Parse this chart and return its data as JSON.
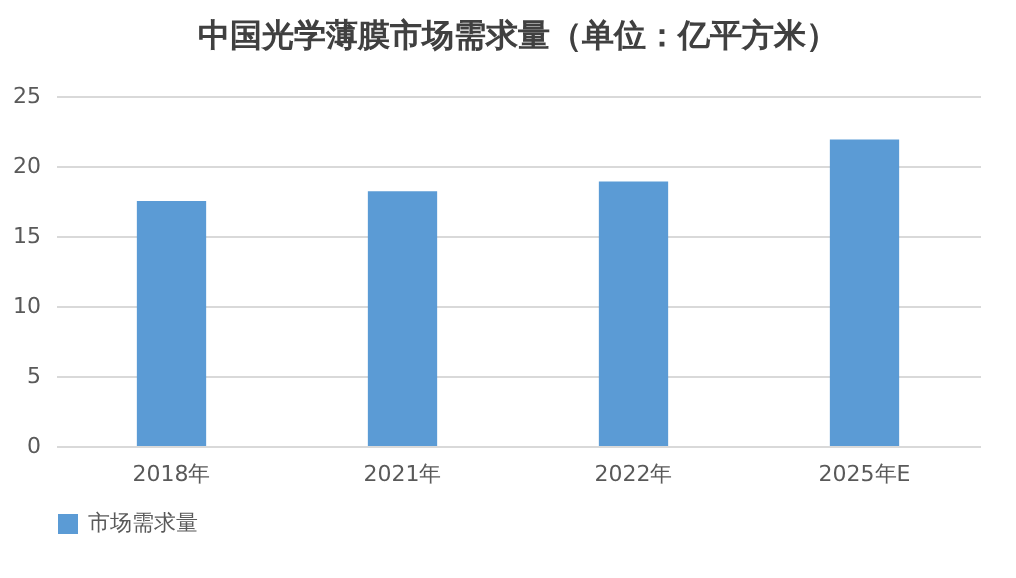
{
  "chart_data": {
    "type": "bar",
    "title": "中国光学薄膜市场需求量（单位：亿平方米）",
    "categories": [
      "2018年",
      "2021年",
      "2022年",
      "2025年E"
    ],
    "series": [
      {
        "name": "市场需求量",
        "color": "#5b9bd5",
        "values": [
          17.5,
          18.2,
          18.9,
          21.9
        ]
      }
    ],
    "ylim": [
      0,
      25
    ],
    "yticks": [
      0,
      5,
      10,
      15,
      20,
      25
    ],
    "grid": "y",
    "legend": "bottom"
  }
}
